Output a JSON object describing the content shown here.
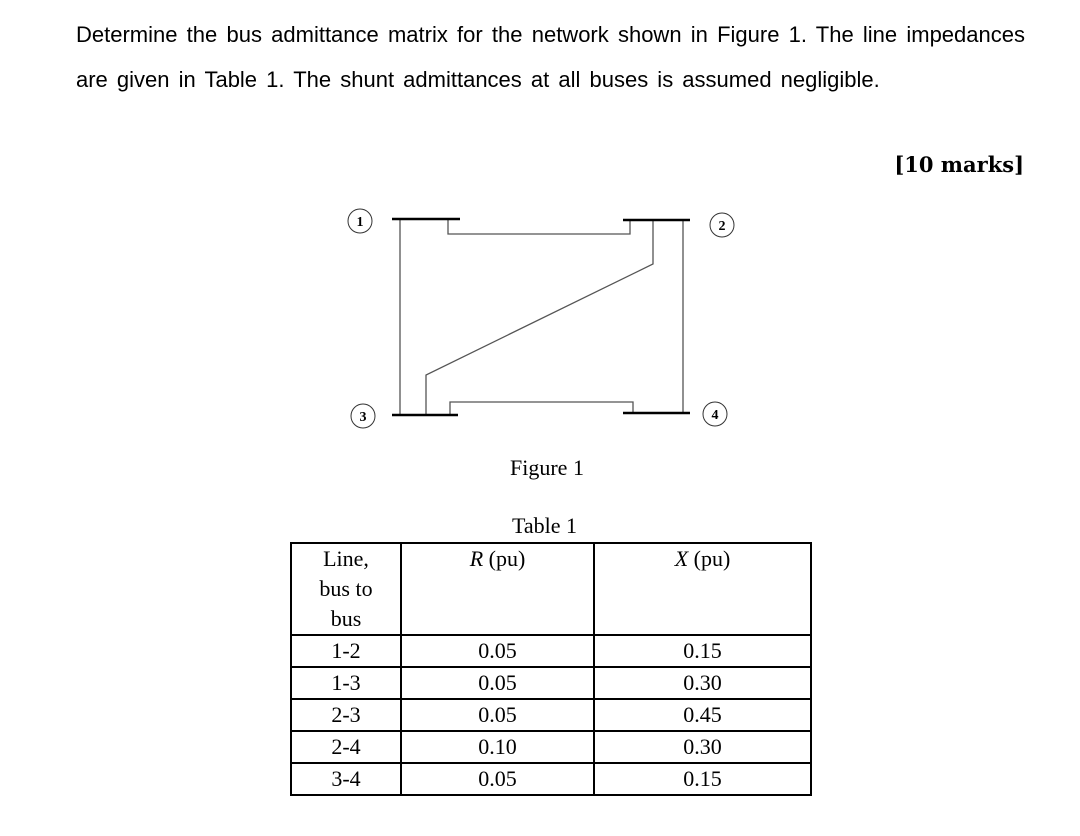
{
  "question": {
    "text": "Determine the bus admittance matrix for the network shown in Figure 1. The line impedances are given in Table 1. The shunt admittances at all buses is assumed negligible.",
    "marks": "[10 marks]"
  },
  "figure": {
    "caption": "Figure 1",
    "buses": [
      "1",
      "2",
      "3",
      "4"
    ]
  },
  "table": {
    "caption": "Table 1",
    "headers": [
      {
        "lines": [
          "Line,",
          "bus to",
          "bus"
        ]
      },
      {
        "var": "R",
        "unit": " (pu)"
      },
      {
        "var": "X",
        "unit": " (pu)"
      }
    ],
    "rows": [
      {
        "line": "1-2",
        "r": "0.05",
        "x": "0.15"
      },
      {
        "line": "1-3",
        "r": "0.05",
        "x": "0.30"
      },
      {
        "line": "2-3",
        "r": "0.05",
        "x": "0.45"
      },
      {
        "line": "2-4",
        "r": "0.10",
        "x": "0.30"
      },
      {
        "line": "3-4",
        "r": "0.05",
        "x": "0.15"
      }
    ]
  }
}
